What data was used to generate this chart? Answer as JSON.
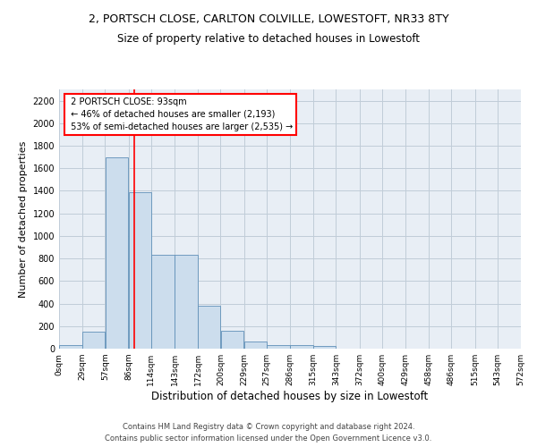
{
  "title_line1": "2, PORTSCH CLOSE, CARLTON COLVILLE, LOWESTOFT, NR33 8TY",
  "title_line2": "Size of property relative to detached houses in Lowestoft",
  "xlabel": "Distribution of detached houses by size in Lowestoft",
  "ylabel": "Number of detached properties",
  "annotation_title": "2 PORTSCH CLOSE: 93sqm",
  "annotation_line1": "← 46% of detached houses are smaller (2,193)",
  "annotation_line2": "53% of semi-detached houses are larger (2,535) →",
  "footer_line1": "Contains HM Land Registry data © Crown copyright and database right 2024.",
  "footer_line2": "Contains public sector information licensed under the Open Government Licence v3.0.",
  "bin_edges": [
    0,
    29,
    57,
    86,
    114,
    143,
    172,
    200,
    229,
    257,
    286,
    315,
    343,
    372,
    400,
    429,
    458,
    486,
    515,
    543,
    572
  ],
  "bar_heights": [
    30,
    150,
    1700,
    1390,
    830,
    830,
    380,
    160,
    60,
    30,
    30,
    20,
    0,
    0,
    0,
    0,
    0,
    0,
    0,
    0
  ],
  "bar_color": "#ccdded",
  "bar_edge_color": "#6090b8",
  "grid_color": "#c0ccd8",
  "background_color": "#e8eef5",
  "vline_x": 93,
  "vline_color": "red",
  "ylim": [
    0,
    2300
  ],
  "yticks": [
    0,
    200,
    400,
    600,
    800,
    1000,
    1200,
    1400,
    1600,
    1800,
    2000,
    2200
  ],
  "annotation_box_color": "white",
  "annotation_box_edge": "red",
  "title_fontsize": 9,
  "subtitle_fontsize": 8.5,
  "ylabel_fontsize": 8,
  "xlabel_fontsize": 8.5,
  "tick_fontsize": 6.5,
  "footer_fontsize": 6
}
